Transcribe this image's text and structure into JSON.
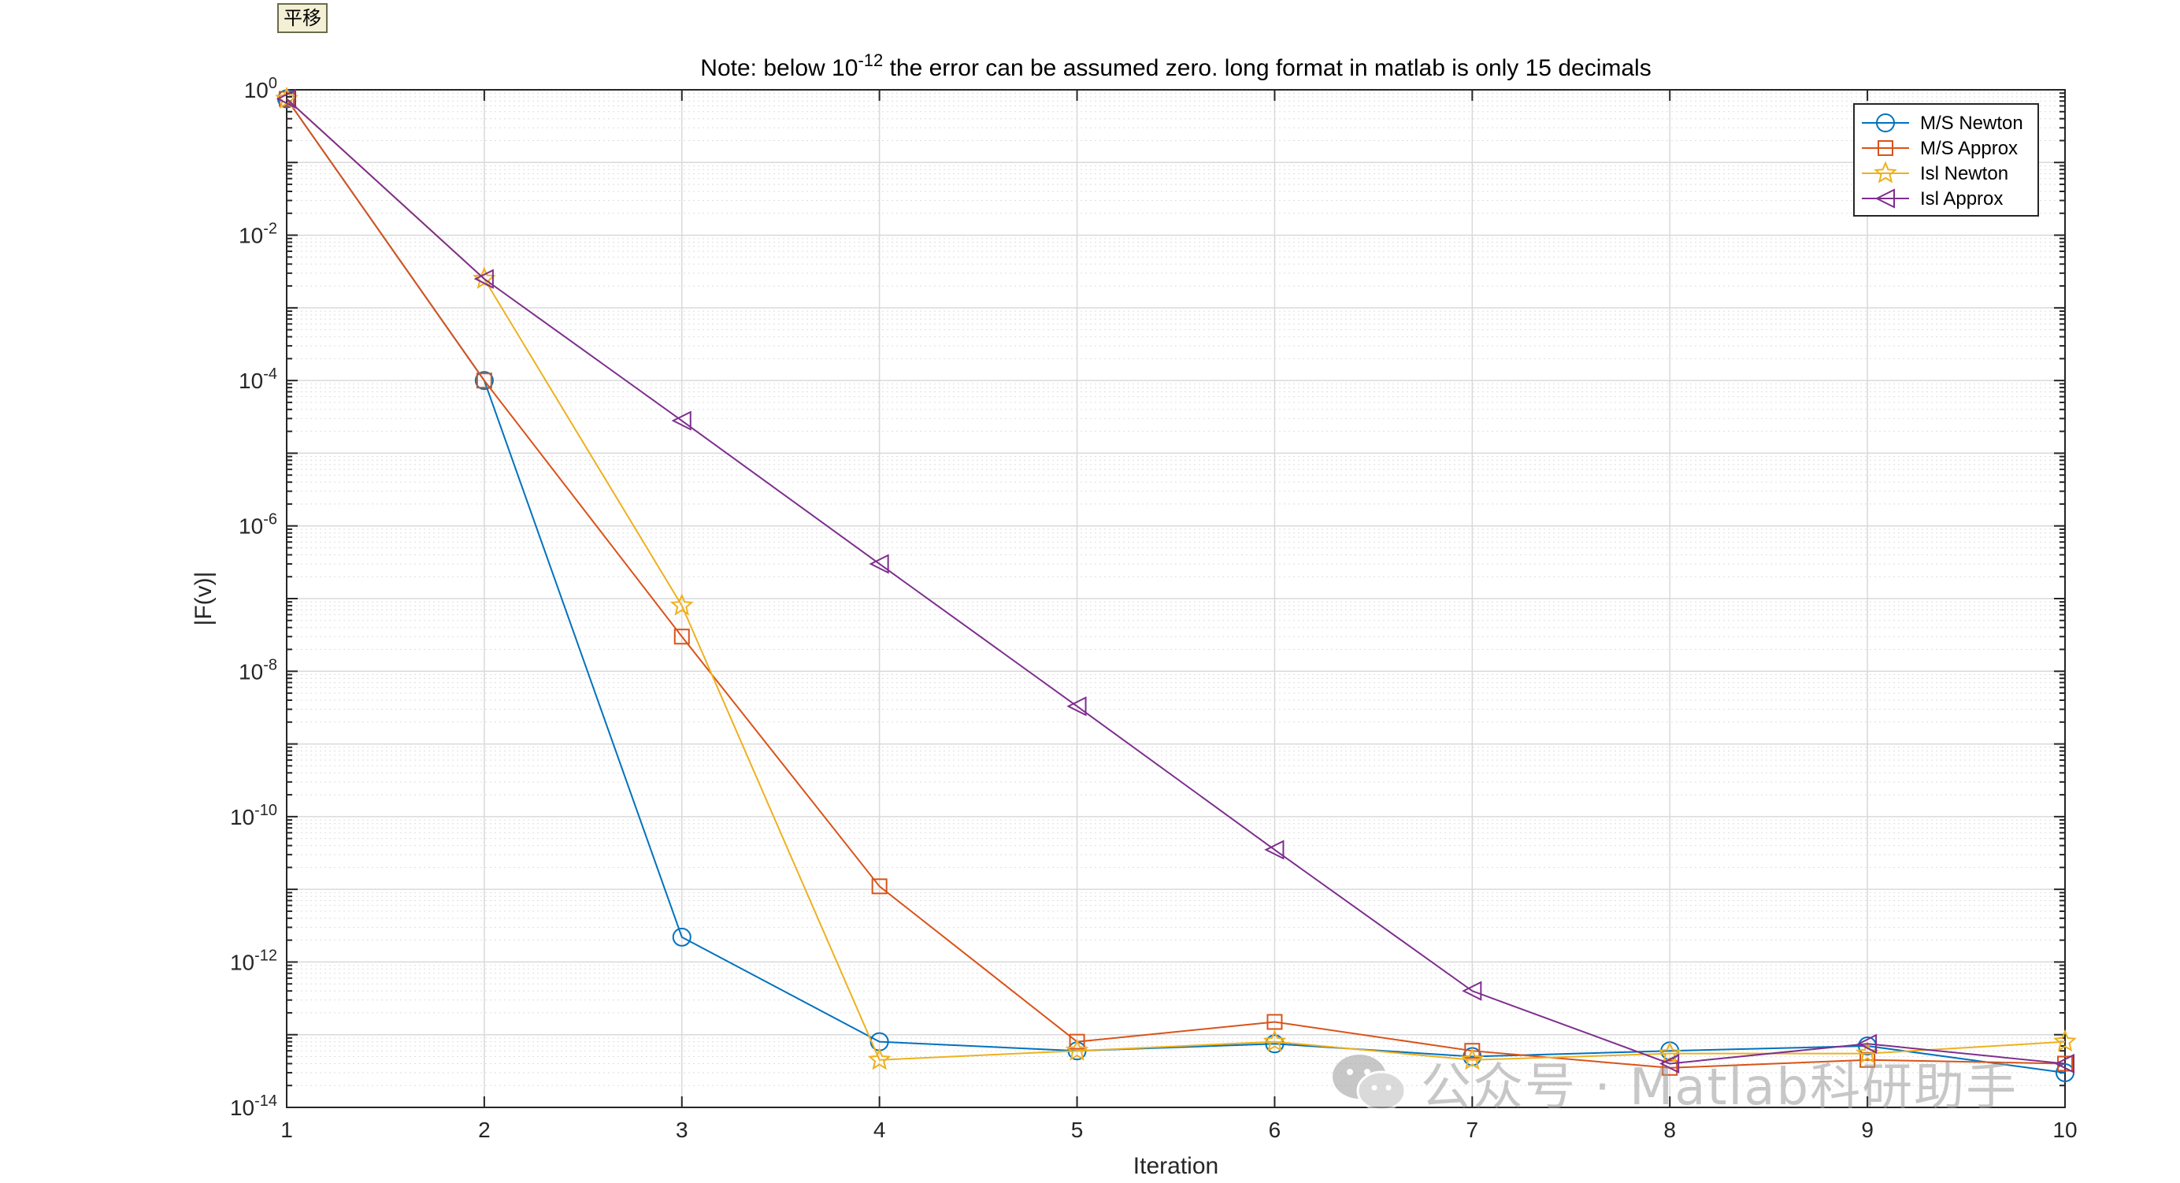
{
  "toolbar": {
    "pan_button_label": "平移"
  },
  "watermark": {
    "text": "公众号 · Matlab科研助手",
    "icon": "wechat-icon"
  },
  "chart_data": {
    "type": "line",
    "title_prefix": "Note: below 10",
    "title_exponent": "-12",
    "title_suffix": " the error can be assumed zero.  long format in matlab is only 15 decimals",
    "xlabel": "Iteration",
    "ylabel": "|F(v)|",
    "yscale": "log",
    "xlim": [
      1,
      10
    ],
    "ylim": [
      1e-14,
      1
    ],
    "x_ticks": [
      "1",
      "2",
      "3",
      "4",
      "5",
      "6",
      "7",
      "8",
      "9",
      "10"
    ],
    "y_ticks": [
      {
        "base": "10",
        "exp": "0",
        "value": 1
      },
      {
        "base": "10",
        "exp": "-2",
        "value": 0.01
      },
      {
        "base": "10",
        "exp": "-4",
        "value": 0.0001
      },
      {
        "base": "10",
        "exp": "-6",
        "value": 1e-06
      },
      {
        "base": "10",
        "exp": "-8",
        "value": 1e-08
      },
      {
        "base": "10",
        "exp": "-10",
        "value": 1e-10
      },
      {
        "base": "10",
        "exp": "-12",
        "value": 1e-12
      },
      {
        "base": "10",
        "exp": "-14",
        "value": 1e-14
      }
    ],
    "grid": true,
    "minor_grid": true,
    "legend_position": "top-right",
    "x": [
      1,
      2,
      3,
      4,
      5,
      6,
      7,
      8,
      9,
      10
    ],
    "series": [
      {
        "name": "M/S Newton",
        "color": "#0072BD",
        "marker": "circle",
        "values": [
          0.75,
          0.0001,
          2.2e-12,
          8e-14,
          6e-14,
          7.5e-14,
          5e-14,
          6e-14,
          7e-14,
          3e-14
        ]
      },
      {
        "name": "M/S Approx",
        "color": "#D95319",
        "marker": "square",
        "values": [
          0.75,
          0.0001,
          3e-08,
          1.1e-11,
          8e-14,
          1.5e-13,
          6e-14,
          3.5e-14,
          4.5e-14,
          4e-14
        ]
      },
      {
        "name": "Isl Newton",
        "color": "#EDB120",
        "marker": "star",
        "values": [
          0.75,
          0.0025,
          8e-08,
          4.5e-14,
          6e-14,
          8e-14,
          4.5e-14,
          5.5e-14,
          5.5e-14,
          8e-14
        ]
      },
      {
        "name": "Isl Approx",
        "color": "#7E2F8E",
        "marker": "triangle-left",
        "values": [
          0.75,
          0.0025,
          2.8e-05,
          3e-07,
          3.3e-09,
          3.5e-11,
          4e-13,
          4e-14,
          7.5e-14,
          4e-14
        ]
      }
    ]
  }
}
